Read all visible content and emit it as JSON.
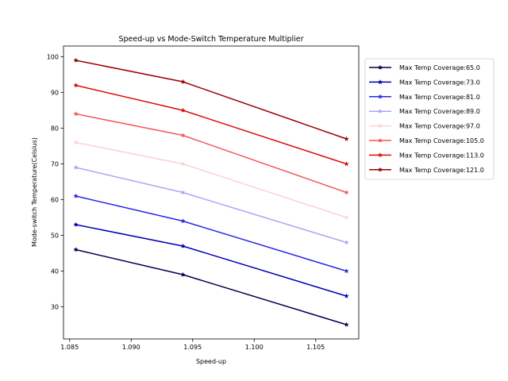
{
  "chart_data": {
    "type": "line",
    "title": "Speed-up vs Mode-Switch Temperature Multiplier",
    "xlabel": "Speed-up",
    "ylabel": "Mode-switch Temperature(Celsius)",
    "xlim": [
      1.0845,
      1.1085
    ],
    "ylim": [
      21,
      103
    ],
    "xticks": [
      1.085,
      1.09,
      1.095,
      1.1,
      1.105
    ],
    "xtick_labels": [
      "1.085",
      "1.090",
      "1.095",
      "1.100",
      "1.105"
    ],
    "yticks": [
      30,
      40,
      50,
      60,
      70,
      80,
      90,
      100
    ],
    "ytick_labels": [
      "30",
      "40",
      "50",
      "60",
      "70",
      "80",
      "90",
      "100"
    ],
    "x": [
      1.0855,
      1.0942,
      1.1075
    ],
    "grid": false,
    "legend_position": "outside-right",
    "series": [
      {
        "name": "Max Temp Coverage:65.0",
        "color": "#00004d",
        "values": [
          46,
          39,
          25
        ]
      },
      {
        "name": "Max Temp Coverage:73.0",
        "color": "#0000b3",
        "values": [
          53,
          47,
          33
        ]
      },
      {
        "name": "Max Temp Coverage:81.0",
        "color": "#2828e6",
        "values": [
          61,
          54,
          40
        ]
      },
      {
        "name": "Max Temp Coverage:89.0",
        "color": "#a8a8f5",
        "values": [
          69,
          62,
          48
        ]
      },
      {
        "name": "Max Temp Coverage:97.0",
        "color": "#ffd2d2",
        "values": [
          76,
          70,
          55
        ]
      },
      {
        "name": "Max Temp Coverage:105.0",
        "color": "#f25858",
        "values": [
          84,
          78,
          62
        ]
      },
      {
        "name": "Max Temp Coverage:113.0",
        "color": "#dd0a0a",
        "values": [
          92,
          85,
          70
        ]
      },
      {
        "name": "Max Temp Coverage:121.0",
        "color": "#9b0000",
        "values": [
          99,
          93,
          77
        ]
      }
    ]
  }
}
